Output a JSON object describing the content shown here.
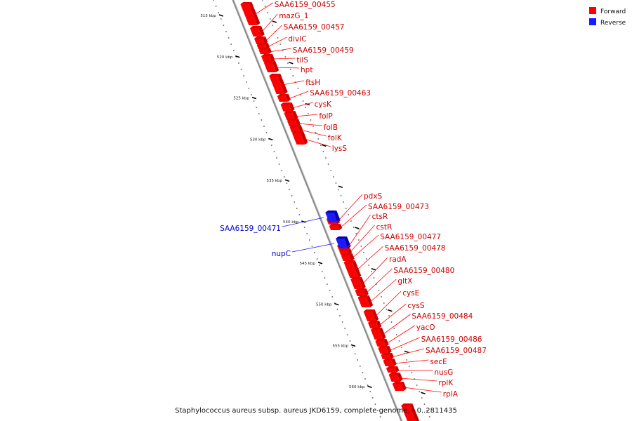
{
  "footer": "Staphylococcus aureus subsp. aureus JKD6159, complete genome. - 0..2811435",
  "colors": {
    "forward": "#ff0000",
    "forward_dark": "#c80000",
    "forward_side": "#e40000",
    "reverse": "#1a1aff",
    "reverse_dark": "#0000b4",
    "forward_text": "#cc0000",
    "reverse_text": "#0000cc",
    "backbone": "#8c8c8c",
    "tick": "#000000"
  },
  "legend": [
    {
      "label": "Forward",
      "strand": "forward"
    },
    {
      "label": "Reverse",
      "strand": "reverse"
    }
  ],
  "ticks": [
    "515 kbp",
    "520 kbp",
    "525 kbp",
    "530 kbp",
    "535 kbp",
    "540 kbp",
    "545 kbp",
    "550 kbp",
    "555 kbp",
    "560 kbp"
  ],
  "features": [
    {
      "name": "SAA6159_00455",
      "strand": "forward"
    },
    {
      "name": "mazG_1",
      "strand": "forward"
    },
    {
      "name": "SAA6159_00457",
      "strand": "forward"
    },
    {
      "name": "divIC",
      "strand": "forward"
    },
    {
      "name": "SAA6159_00459",
      "strand": "forward"
    },
    {
      "name": "tilS",
      "strand": "forward"
    },
    {
      "name": "hpt",
      "strand": "forward"
    },
    {
      "name": "ftsH",
      "strand": "forward"
    },
    {
      "name": "SAA6159_00463",
      "strand": "forward"
    },
    {
      "name": "cysK",
      "strand": "forward"
    },
    {
      "name": "folP",
      "strand": "forward"
    },
    {
      "name": "folB",
      "strand": "forward"
    },
    {
      "name": "folK",
      "strand": "forward"
    },
    {
      "name": "lysS",
      "strand": "forward"
    },
    {
      "name": "pdxS",
      "strand": "forward"
    },
    {
      "name": "SAA6159_00473",
      "strand": "forward"
    },
    {
      "name": "ctsR",
      "strand": "forward"
    },
    {
      "name": "cstR",
      "strand": "forward"
    },
    {
      "name": "SAA6159_00477",
      "strand": "forward"
    },
    {
      "name": "SAA6159_00478",
      "strand": "forward"
    },
    {
      "name": "radA",
      "strand": "forward"
    },
    {
      "name": "SAA6159_00480",
      "strand": "forward"
    },
    {
      "name": "gltX",
      "strand": "forward"
    },
    {
      "name": "cysE",
      "strand": "forward"
    },
    {
      "name": "cysS",
      "strand": "forward"
    },
    {
      "name": "SAA6159_00484",
      "strand": "forward"
    },
    {
      "name": "yacO",
      "strand": "forward"
    },
    {
      "name": "SAA6159_00486",
      "strand": "forward"
    },
    {
      "name": "SAA6159_00487",
      "strand": "forward"
    },
    {
      "name": "secE",
      "strand": "forward"
    },
    {
      "name": "nusG",
      "strand": "forward"
    },
    {
      "name": "rplK",
      "strand": "forward"
    },
    {
      "name": "rplA",
      "strand": "forward"
    },
    {
      "name": "SAA6159_00471",
      "strand": "reverse"
    },
    {
      "name": "nupC",
      "strand": "reverse"
    }
  ]
}
